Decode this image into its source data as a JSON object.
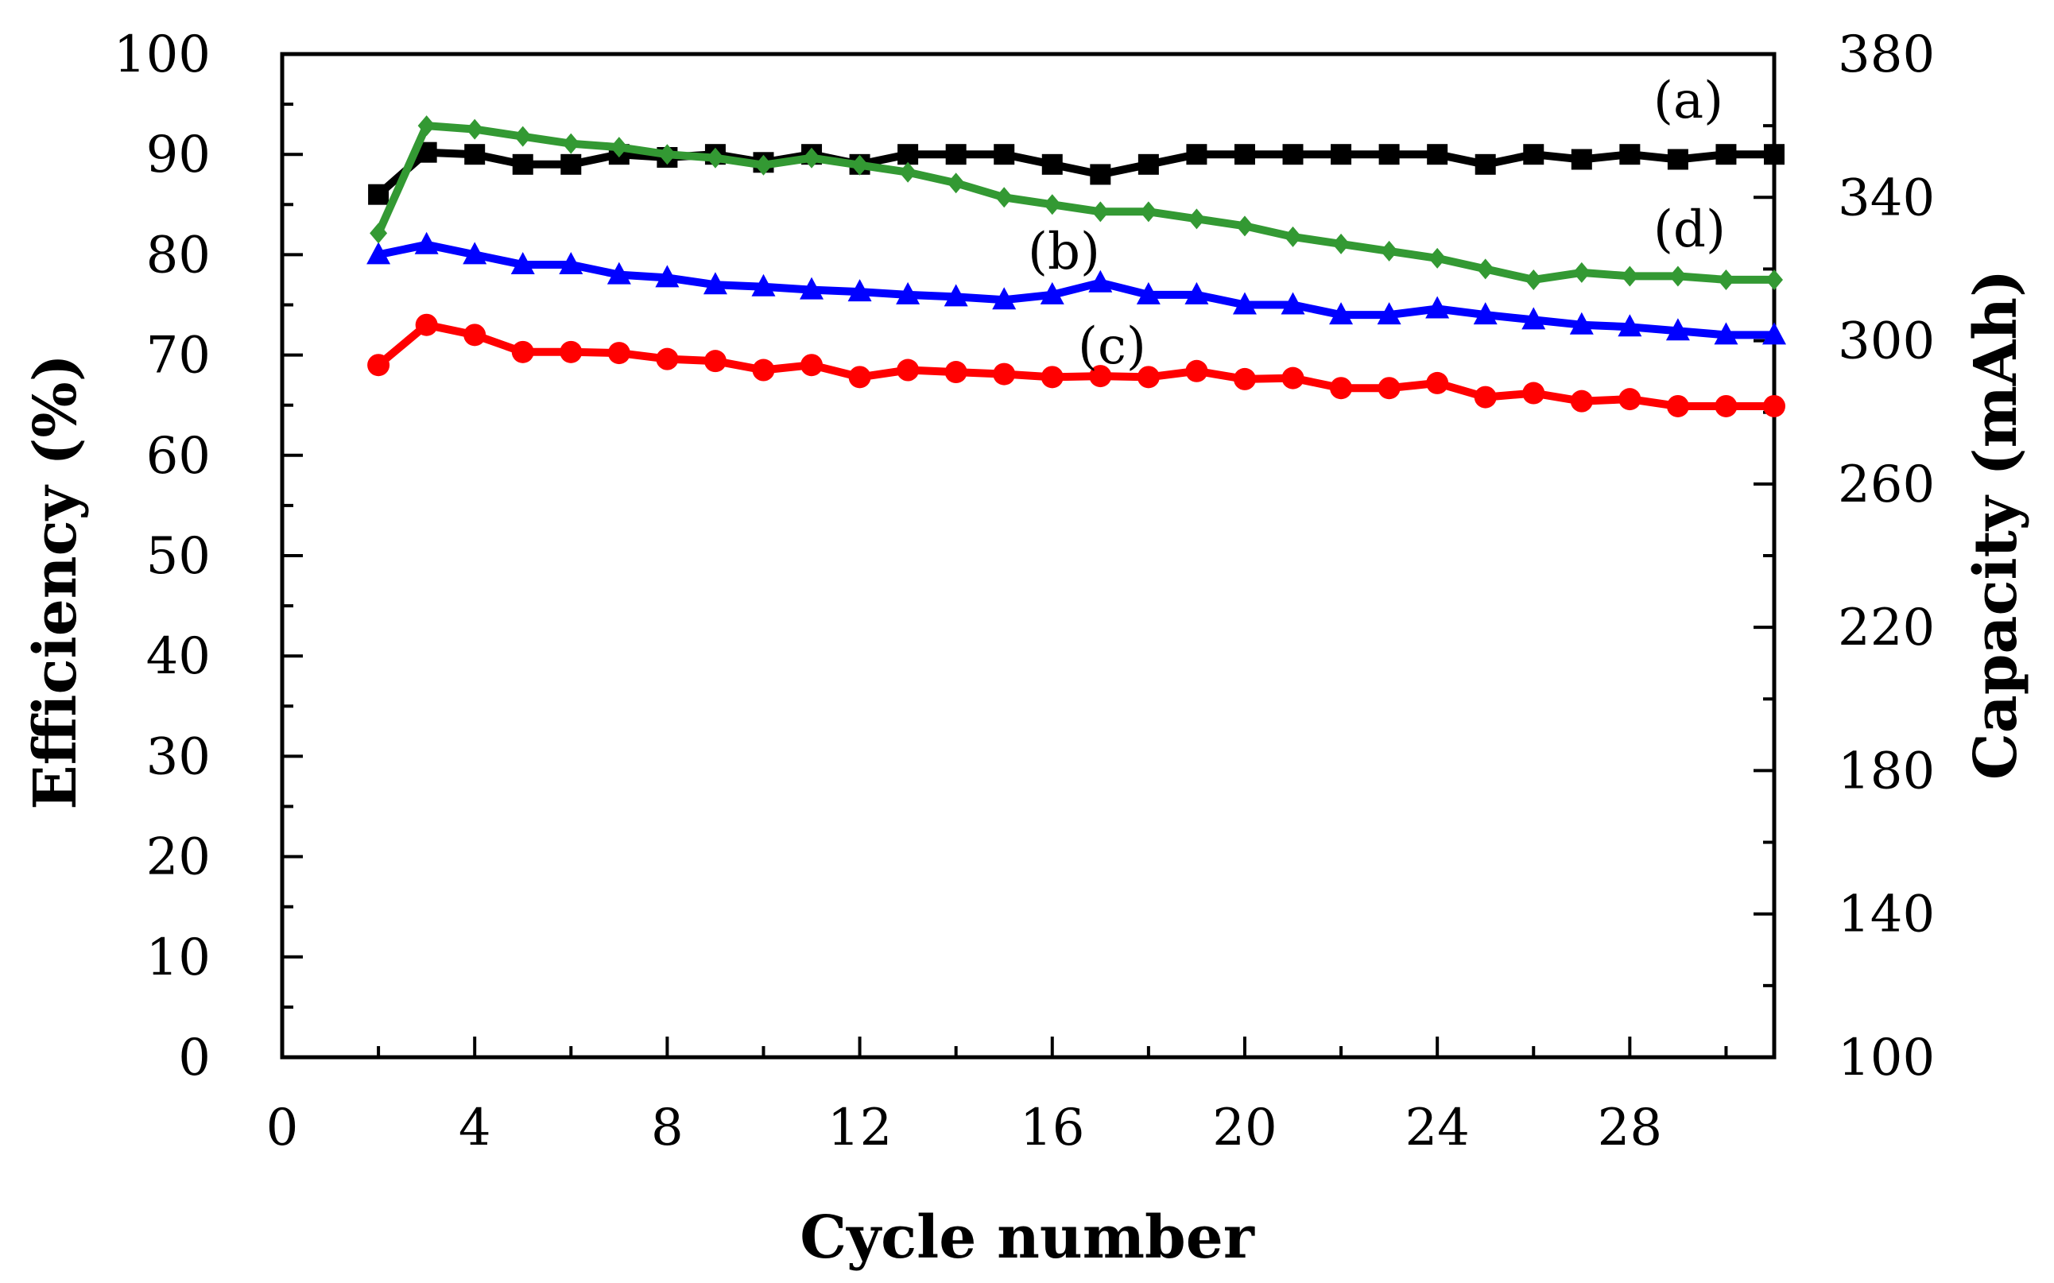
{
  "chart_data": {
    "type": "line",
    "title": "",
    "xlabel": "Cycle number",
    "ylabel": "Efficiency (%)",
    "y2label": "Capacity (mAh)",
    "xlim": [
      0,
      31
    ],
    "ylim": [
      0,
      100
    ],
    "y2lim": [
      100,
      380
    ],
    "x_ticks": [
      0,
      4,
      8,
      12,
      16,
      20,
      24,
      28
    ],
    "y_ticks": [
      0,
      10,
      20,
      30,
      40,
      50,
      60,
      70,
      80,
      90,
      100
    ],
    "y2_ticks": [
      100,
      140,
      180,
      220,
      260,
      300,
      340,
      380
    ],
    "grid": false,
    "x": [
      2,
      3,
      4,
      5,
      6,
      7,
      8,
      9,
      10,
      11,
      12,
      13,
      14,
      15,
      16,
      17,
      18,
      19,
      20,
      21,
      22,
      23,
      24,
      25,
      26,
      27,
      28,
      29,
      30,
      31
    ],
    "series": [
      {
        "name": "(a)",
        "axis": "left",
        "color": "#000000",
        "marker": "square",
        "values": [
          86,
          90.2,
          90,
          89,
          89,
          90,
          89.7,
          90,
          89.2,
          90,
          89,
          90,
          90,
          90,
          89,
          88,
          89,
          90,
          90,
          90,
          90,
          90,
          90,
          89,
          90,
          89.5,
          90,
          89.5,
          90,
          90
        ]
      },
      {
        "name": "(b)",
        "axis": "left",
        "color": "#0000ff",
        "marker": "triangle",
        "values": [
          80,
          81,
          80,
          79,
          79,
          78,
          77.7,
          77,
          76.8,
          76.5,
          76.3,
          76,
          75.8,
          75.5,
          76,
          77.2,
          76,
          76,
          75,
          75,
          74,
          74,
          74.6,
          74,
          73.5,
          73,
          72.8,
          72.4,
          72,
          72
        ]
      },
      {
        "name": "(c)",
        "axis": "left",
        "color": "#ff0000",
        "marker": "circle",
        "values": [
          69,
          73,
          72,
          70.3,
          70.3,
          70.2,
          69.6,
          69.4,
          68.5,
          69,
          67.8,
          68.5,
          68.3,
          68.1,
          67.8,
          67.9,
          67.8,
          68.4,
          67.6,
          67.7,
          66.7,
          66.7,
          67.2,
          65.8,
          66.2,
          65.4,
          65.6,
          64.9,
          64.9,
          64.9
        ]
      },
      {
        "name": "(d)",
        "axis": "right",
        "color": "#339933",
        "marker": "diamond",
        "values": [
          330,
          360,
          359,
          357,
          355,
          354,
          352,
          351,
          349,
          351,
          349,
          347,
          344,
          340,
          338,
          336,
          336,
          334,
          332,
          329,
          327,
          325,
          323,
          320,
          317,
          319,
          318,
          318,
          317,
          317
        ]
      }
    ],
    "annotations": [
      "(a)",
      "(b)",
      "(c)",
      "(d)"
    ]
  }
}
